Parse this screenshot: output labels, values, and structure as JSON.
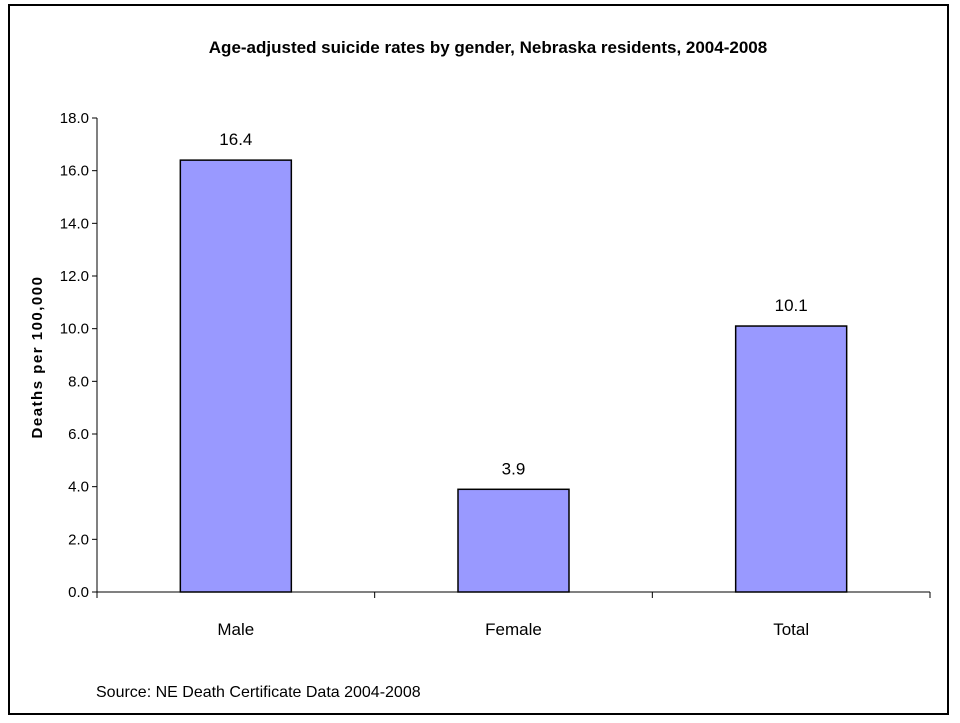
{
  "chart_data": {
    "type": "bar",
    "title": "Age-adjusted suicide rates by gender, Nebraska residents, 2004-2008",
    "xlabel": "",
    "ylabel": "Deaths per 100,000",
    "categories": [
      "Male",
      "Female",
      "Total"
    ],
    "values": [
      16.4,
      3.9,
      10.1
    ],
    "data_labels": [
      "16.4",
      "3.9",
      "10.1"
    ],
    "ylim": [
      0,
      18
    ],
    "yticks": [
      "0.0",
      "2.0",
      "4.0",
      "6.0",
      "8.0",
      "10.0",
      "12.0",
      "14.0",
      "16.0",
      "18.0"
    ],
    "grid": false,
    "bar_color": "#9999ff",
    "bar_edge_color": "#000000",
    "source": "Source: NE Death Certificate Data 2004-2008"
  }
}
